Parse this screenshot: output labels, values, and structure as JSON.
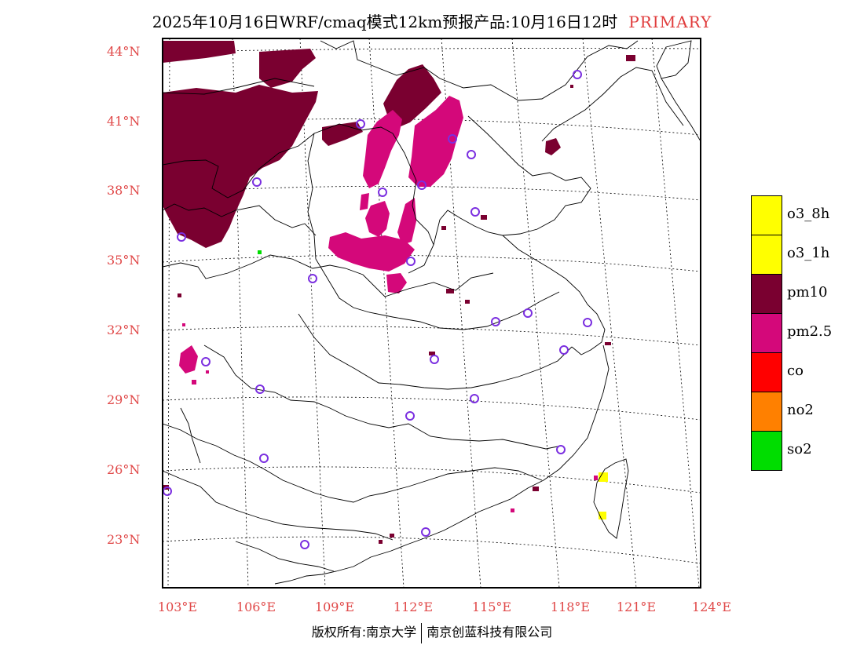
{
  "title": {
    "main": "2025年10月16日WRF/cmaq模式12km预报产品:10月16日12时",
    "tag": "PRIMARY"
  },
  "footer": {
    "left": "版权所有:南京大学",
    "right": "南京创蓝科技有限公司"
  },
  "axes": {
    "lat_labels": [
      "44°N",
      "41°N",
      "38°N",
      "35°N",
      "32°N",
      "29°N",
      "26°N",
      "23°N"
    ],
    "lon_labels": [
      "103°E",
      "106°E",
      "109°E",
      "112°E",
      "115°E",
      "118°E",
      "121°E",
      "124°E"
    ]
  },
  "legend": [
    {
      "label": "o3_8h",
      "color": "#ffff00"
    },
    {
      "label": "o3_1h",
      "color": "#ffff00"
    },
    {
      "label": "pm10",
      "color": "#7a0030"
    },
    {
      "label": "pm2.5",
      "color": "#d4087a"
    },
    {
      "label": "co",
      "color": "#ff0000"
    },
    {
      "label": "no2",
      "color": "#ff8000"
    },
    {
      "label": "so2",
      "color": "#00dd00"
    }
  ],
  "colors": {
    "pm10": "#7a0030",
    "pm25": "#d4087a",
    "o3": "#ffff00",
    "so2": "#00dd00",
    "station": "#7b2fe0",
    "axis_label": "#e04848"
  }
}
